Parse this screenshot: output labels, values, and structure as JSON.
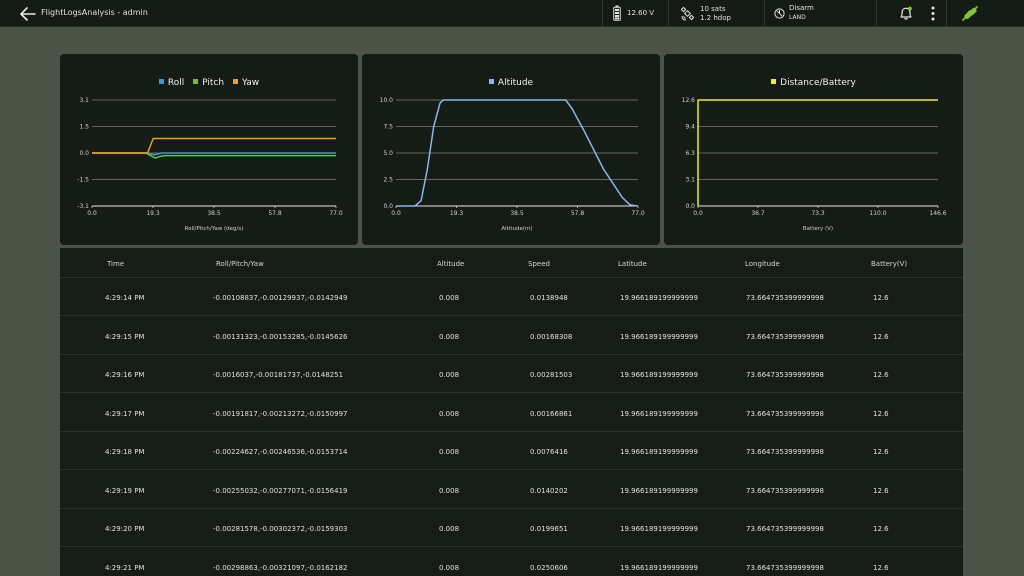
{
  "header": {
    "title": "FlightLogsAnalysis - admin",
    "battery": "12.60 V",
    "gps_sats": "10 sats",
    "gps_hdop": "1.2 hdop",
    "arm_state": "Disarm",
    "flight_mode": "LAND",
    "icons": [
      "back-arrow-icon",
      "battery-icon",
      "satellite-icon",
      "arm-status-icon",
      "bell-icon",
      "kebab-menu-icon",
      "plug-icon"
    ],
    "colors": {
      "bar": "#141a14",
      "connected": "#7ec83a"
    }
  },
  "charts": {
    "rpy": {
      "legend": [
        "Roll",
        "Pitch",
        "Yaw"
      ],
      "xlabel": "Roll/Pitch/Yaw (deg/s)",
      "xticks": [
        "0.0",
        "19.3",
        "38.5",
        "57.8",
        "77.0"
      ],
      "yticks": [
        "3.1",
        "1.5",
        "0.0",
        "-1.5",
        "-3.1"
      ]
    },
    "altitude": {
      "legend": [
        "Altitude"
      ],
      "xlabel": "Altitude(m)",
      "xticks": [
        "0.0",
        "19.3",
        "38.5",
        "57.8",
        "77.0"
      ],
      "yticks": [
        "10.0",
        "7.5",
        "5.0",
        "2.5",
        "0.0"
      ]
    },
    "battery": {
      "legend": [
        "Distance/Battery"
      ],
      "xlabel": "Battery (V)",
      "xticks": [
        "0.0",
        "36.7",
        "73.3",
        "110.0",
        "146.6"
      ],
      "yticks": [
        "12.6",
        "9.4",
        "6.3",
        "3.1",
        "0.0"
      ]
    }
  },
  "chart_data": [
    {
      "type": "line",
      "title": "",
      "xlabel": "Roll/Pitch/Yaw (deg/s)",
      "ylabel": "",
      "xlim": [
        0,
        77
      ],
      "ylim": [
        -3.1,
        3.1
      ],
      "grid": true,
      "legend_position": "top-center",
      "series": [
        {
          "name": "Roll",
          "color": "#2f9be0",
          "points": [
            [
              0,
              0
            ],
            [
              17,
              0
            ],
            [
              18.5,
              -0.05
            ],
            [
              19.5,
              -0.1
            ],
            [
              21,
              -0.05
            ],
            [
              22,
              0
            ],
            [
              77,
              0
            ]
          ]
        },
        {
          "name": "Pitch",
          "color": "#6ec03d",
          "points": [
            [
              0,
              0
            ],
            [
              17,
              0
            ],
            [
              18.5,
              -0.15
            ],
            [
              20,
              -0.3
            ],
            [
              21.5,
              -0.2
            ],
            [
              23,
              -0.15
            ],
            [
              77,
              -0.15
            ]
          ]
        },
        {
          "name": "Yaw",
          "color": "#f29a2e",
          "points": [
            [
              0,
              0
            ],
            [
              17.5,
              0
            ],
            [
              19.3,
              0.85
            ],
            [
              77,
              0.85
            ]
          ]
        }
      ]
    },
    {
      "type": "line",
      "title": "",
      "xlabel": "Altitude(m)",
      "ylabel": "",
      "xlim": [
        0,
        77
      ],
      "ylim": [
        0,
        10
      ],
      "grid": true,
      "legend_position": "top-center",
      "series": [
        {
          "name": "Altitude",
          "color": "#8ab6ea",
          "points": [
            [
              0,
              0
            ],
            [
              6,
              0
            ],
            [
              8,
              0.5
            ],
            [
              10,
              3.5
            ],
            [
              12,
              7.5
            ],
            [
              14,
              9.7
            ],
            [
              15,
              10
            ],
            [
              54,
              10
            ],
            [
              56,
              9.2
            ],
            [
              60,
              7
            ],
            [
              66,
              3.5
            ],
            [
              72,
              0.8
            ],
            [
              74.5,
              0.1
            ],
            [
              77,
              0
            ]
          ]
        }
      ]
    },
    {
      "type": "line",
      "title": "",
      "xlabel": "Battery (V)",
      "ylabel": "",
      "xlim": [
        0,
        146.6
      ],
      "ylim": [
        0,
        12.6
      ],
      "grid": true,
      "legend_position": "top-center",
      "series": [
        {
          "name": "Distance/Battery",
          "color": "#ecec2a",
          "points": [
            [
              0,
              0
            ],
            [
              0,
              12.6
            ],
            [
              146.6,
              12.6
            ]
          ]
        }
      ]
    }
  ],
  "table": {
    "columns": [
      "Time",
      "Roll/Pitch/Yaw",
      "Altitude",
      "Speed",
      "Latitude",
      "Longitude",
      "Battery(V)"
    ],
    "rows": [
      [
        "4:29:14 PM",
        "-0.00108837,-0.00129937,-0.0142949",
        "0.008",
        "0.0138948",
        "19.966189199999999",
        "73.664735399999998",
        "12.6"
      ],
      [
        "4:29:15 PM",
        "-0.00131323,-0.00153285,-0.0145626",
        "0.008",
        "0.00168308",
        "19.966189199999999",
        "73.664735399999998",
        "12.6"
      ],
      [
        "4:29:16 PM",
        "-0.0016037,-0.00181737,-0.0148251",
        "0.008",
        "0.00281503",
        "19.966189199999999",
        "73.664735399999998",
        "12.6"
      ],
      [
        "4:29:17 PM",
        "-0.00191817,-0.00213272,-0.0150997",
        "0.008",
        "0.00166861",
        "19.966189199999999",
        "73.664735399999998",
        "12.6"
      ],
      [
        "4:29:18 PM",
        "-0.00224627,-0.00246536,-0.0153714",
        "0.008",
        "0.0076416",
        "19.966189199999999",
        "73.664735399999998",
        "12.6"
      ],
      [
        "4:29:19 PM",
        "-0.00255032,-0.00277071,-0.0156419",
        "0.008",
        "0.0140202",
        "19.966189199999999",
        "73.664735399999998",
        "12.6"
      ],
      [
        "4:29:20 PM",
        "-0.00281578,-0.00302372,-0.0159303",
        "0.008",
        "0.0199651",
        "19.966189199999999",
        "73.664735399999998",
        "12.6"
      ],
      [
        "4:29:21 PM",
        "-0.00298863,-0.00321097,-0.0162182",
        "0.008",
        "0.0250606",
        "19.966189199999999",
        "73.664735399999998",
        "12.6"
      ]
    ]
  }
}
